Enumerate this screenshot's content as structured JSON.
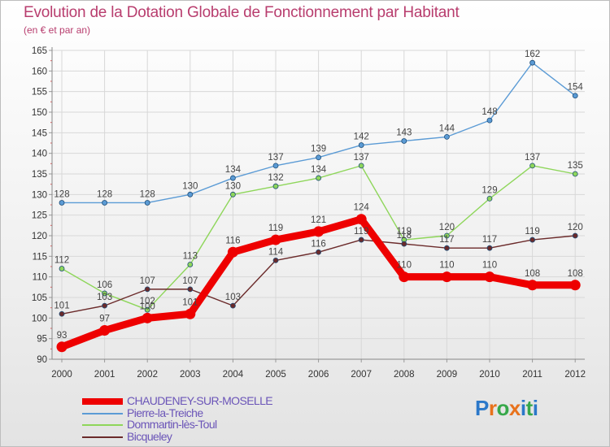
{
  "title": "Evolution de la Dotation Globale de Fonctionnement par Habitant",
  "subtitle": "(en € et par an)",
  "logo": {
    "text": "Proxiti",
    "letters": [
      "P",
      "r",
      "o",
      "x",
      "i",
      "t",
      "i"
    ],
    "colors": [
      "#2b78c9",
      "#e8721c",
      "#37a84a",
      "#e8721c",
      "#2b78c9",
      "#37a84a",
      "#2b78c9"
    ]
  },
  "chart_data": {
    "type": "line",
    "title": "Evolution de la Dotation Globale de Fonctionnement par Habitant",
    "subtitle": "(en € et par an)",
    "xlabel": "",
    "ylabel": "",
    "categories": [
      "2000",
      "2001",
      "2002",
      "2003",
      "2004",
      "2005",
      "2006",
      "2007",
      "2008",
      "2009",
      "2010",
      "2011",
      "2012"
    ],
    "ylim": [
      90,
      165
    ],
    "yticks": [
      90,
      95,
      100,
      105,
      110,
      115,
      120,
      125,
      130,
      135,
      140,
      145,
      150,
      155,
      160,
      165
    ],
    "grid": true,
    "legend_position": "bottom-left",
    "series": [
      {
        "name": "Pierre-la-Treiche",
        "color": "#5b9bd5",
        "emphasis": false,
        "values": [
          128,
          128,
          128,
          130,
          134,
          137,
          139,
          142,
          143,
          144,
          148,
          162,
          154
        ]
      },
      {
        "name": "Dommartin-lès-Toul",
        "color": "#8ed65a",
        "emphasis": false,
        "values": [
          112,
          106,
          102,
          113,
          130,
          132,
          134,
          137,
          119,
          120,
          129,
          137,
          135
        ]
      },
      {
        "name": "Bicqueley",
        "color": "#6b2a2a",
        "emphasis": false,
        "values": [
          101,
          103,
          107,
          107,
          103,
          114,
          116,
          119,
          118,
          117,
          117,
          119,
          120
        ]
      },
      {
        "name": "CHAUDENEY-SUR-MOSELLE",
        "color": "#ee0000",
        "emphasis": true,
        "values": [
          93,
          97,
          100,
          101,
          116,
          119,
          121,
          124,
          110,
          110,
          110,
          108,
          108
        ]
      }
    ],
    "legend_order": [
      "CHAUDENEY-SUR-MOSELLE",
      "Pierre-la-Treiche",
      "Dommartin-lès-Toul",
      "Bicqueley"
    ]
  }
}
